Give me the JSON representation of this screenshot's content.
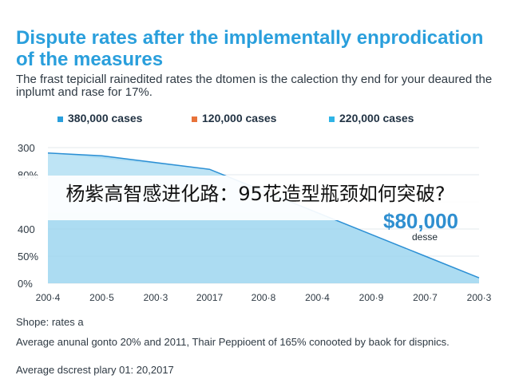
{
  "title": "Dispute rates after the implementally enprodication of the measures",
  "subtitle": "The frast tepiciall rainedited rates the dtomen is the calection thy end for your deaured the inplumt and rase for 17%.",
  "overlay_caption": "杨紫高智感进化路：95花造型瓶颈如何突破?",
  "callout": {
    "value": "$80,000",
    "label": "desse"
  },
  "notes": {
    "line1": "Shope: rates a",
    "line2": "Average anunal gonto 20% and 2011, Thair Peppioent of 165% conooted by baok for dispnics.",
    "line3": "Average dscrest plary 01: 20,2017"
  },
  "colors": {
    "title": "#2a9fdc",
    "area_fill": "#9ed6f0",
    "area_upper_fill": "#c6e7f6",
    "line": "#2b8fd4",
    "series_1": "#2a9fdc",
    "series_2": "#e8733a",
    "series_3": "#2fb4e6"
  },
  "chart_data": {
    "type": "area",
    "title": "Dispute rates after the implementally enprodication of the measures",
    "legend": [
      {
        "name": "380,000 cases",
        "color": "#2a9fdc"
      },
      {
        "name": "120,000 cases",
        "color": "#e8733a"
      },
      {
        "name": "220,000 cases",
        "color": "#2fb4e6"
      }
    ],
    "y_ticks": [
      "300",
      "80%",
      "",
      "400",
      "50%",
      "0%"
    ],
    "x_ticks": [
      "200·4",
      "200·5",
      "200·3",
      "20017",
      "200·8",
      "200·4",
      "200·9",
      "200·7",
      "200·3"
    ],
    "ylim": [
      0,
      100
    ],
    "series": [
      {
        "values": [
          96,
          94,
          89,
          84,
          68,
          52,
          36,
          20,
          4
        ]
      }
    ],
    "grid": true,
    "legend_placement": "top"
  }
}
